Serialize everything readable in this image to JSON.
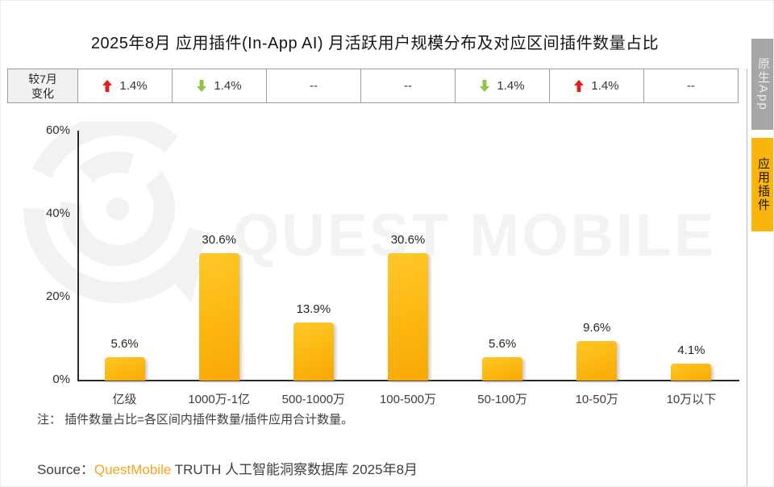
{
  "title": "2025年8月 应用插件(In-App AI) 月活跃用户规模分布及对应区间插件数量占比",
  "side_tabs": [
    {
      "id": "native-app",
      "label": "原生App",
      "active": false
    },
    {
      "id": "in-app-plugin",
      "label": "应用插件",
      "active": true
    }
  ],
  "comparison_row": {
    "header_line1": "较7月",
    "header_line2": "变化",
    "cells": [
      {
        "direction": "up",
        "value": "1.4%"
      },
      {
        "direction": "down",
        "value": "1.4%"
      },
      {
        "direction": "none",
        "value": "--"
      },
      {
        "direction": "none",
        "value": "--"
      },
      {
        "direction": "down",
        "value": "1.4%"
      },
      {
        "direction": "up",
        "value": "1.4%"
      },
      {
        "direction": "none",
        "value": "--"
      }
    ]
  },
  "chart_data": {
    "type": "bar",
    "title": "2025年8月 应用插件(In-App AI) 月活跃用户规模分布及对应区间插件数量占比",
    "categories": [
      "亿级",
      "1000万-1亿",
      "500-1000万",
      "100-500万",
      "50-100万",
      "10-50万",
      "10万以下"
    ],
    "values": [
      5.6,
      30.6,
      13.9,
      30.6,
      5.6,
      9.6,
      4.1
    ],
    "value_labels": [
      "5.6%",
      "30.6%",
      "13.9%",
      "30.6%",
      "5.6%",
      "9.6%",
      "4.1%"
    ],
    "xlabel": "",
    "ylabel": "",
    "ylim": [
      0,
      60
    ],
    "yticks": [
      {
        "label": "0%",
        "value": 0
      },
      {
        "label": "20%",
        "value": 20
      },
      {
        "label": "40%",
        "value": 40
      },
      {
        "label": "60%",
        "value": 60
      }
    ],
    "grid": false,
    "legend": false,
    "bar_color_top": "#FFC72A",
    "bar_color_bottom": "#F8A808"
  },
  "watermark": {
    "text": "QUEST MOBILE"
  },
  "note": "注：  插件数量占比=各区间内插件数量/插件应用合计数量。",
  "source": {
    "prefix": "Source：",
    "brand": "QuestMobile",
    "suffix": " TRUTH 人工智能洞察数据库 2025年8月"
  },
  "colors": {
    "up_arrow": "#E01E1E",
    "down_arrow": "#8EC63F",
    "brand_orange": "#F7A51C",
    "tab_yellow": "#FBB40B",
    "tab_gray": "#A7A7A7",
    "watermark": "#F2F2F2"
  }
}
